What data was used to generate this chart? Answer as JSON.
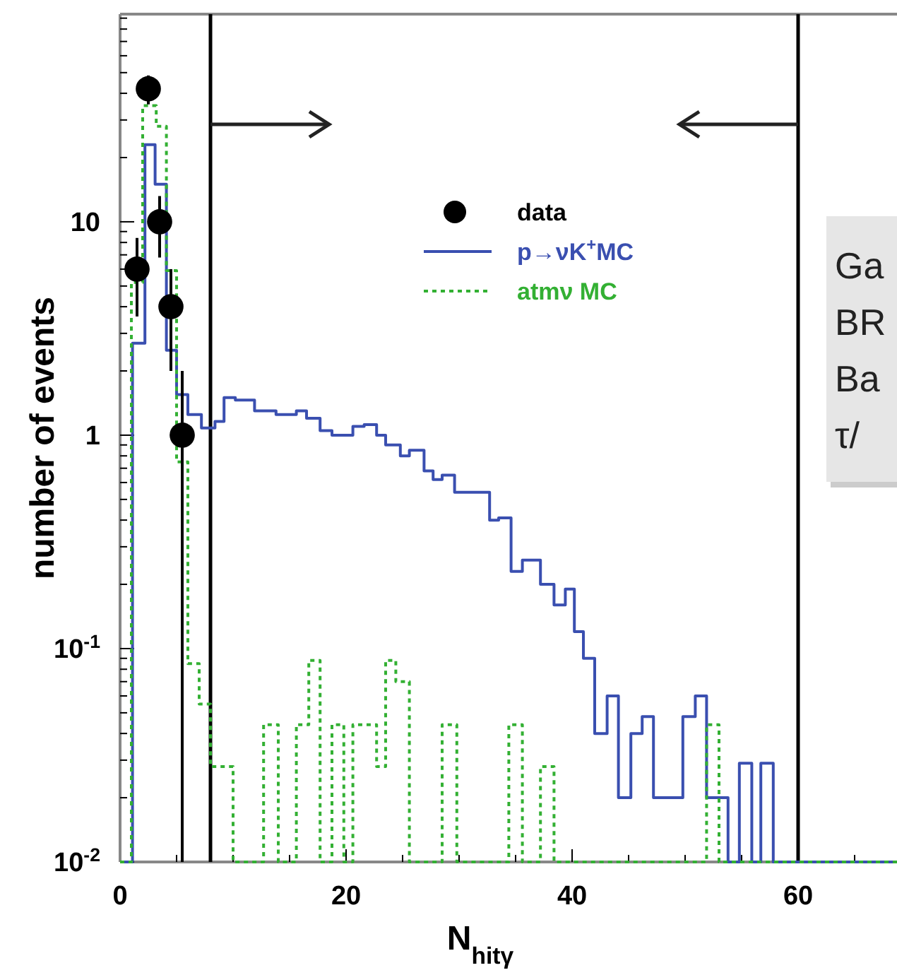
{
  "chart_data": {
    "type": "step",
    "xlabel": "N$_{hitγ}$",
    "ylabel": "number of events",
    "log": "y",
    "legend": "top",
    "grid": false,
    "xlim": [
      0,
      68.75
    ],
    "xticks": [
      0,
      {
        "value": 5,
        "label": null
      },
      {
        "value": 10,
        "label": null
      },
      {
        "value": 15,
        "label": null
      },
      20,
      {
        "value": 25,
        "label": null
      },
      {
        "value": 30,
        "label": null
      },
      {
        "value": 35,
        "label": null
      },
      40,
      {
        "value": 45,
        "label": null
      },
      {
        "value": 50,
        "label": null
      },
      {
        "value": 55,
        "label": null
      },
      60,
      {
        "value": 65,
        "label": null
      }
    ],
    "ylim": [
      0.01,
      94
    ],
    "yticks": [
      {
        "value": 0.01,
        "label": "10$^{-2}$"
      },
      {
        "value": 0.02,
        "label": null
      },
      {
        "value": 0.03,
        "label": null
      },
      {
        "value": 0.04,
        "label": null
      },
      {
        "value": 0.05,
        "label": null
      },
      {
        "value": 0.06,
        "label": null
      },
      {
        "value": 0.07,
        "label": null
      },
      {
        "value": 0.08,
        "label": null
      },
      {
        "value": 0.09,
        "label": null
      },
      {
        "value": 0.1,
        "label": "10$^{-1}$"
      },
      {
        "value": 0.2,
        "label": null
      },
      {
        "value": 0.3,
        "label": null
      },
      {
        "value": 0.4,
        "label": null
      },
      {
        "value": 0.5,
        "label": null
      },
      {
        "value": 0.6,
        "label": null
      },
      {
        "value": 0.7,
        "label": null
      },
      {
        "value": 0.8,
        "label": null
      },
      {
        "value": 0.9,
        "label": null
      },
      1,
      {
        "value": 2,
        "label": null
      },
      {
        "value": 3,
        "label": null
      },
      {
        "value": 4,
        "label": null
      },
      {
        "value": 5,
        "label": null
      },
      {
        "value": 6,
        "label": null
      },
      {
        "value": 7,
        "label": null
      },
      {
        "value": 8,
        "label": null
      },
      {
        "value": 9,
        "label": null
      },
      10,
      {
        "value": 20,
        "label": null
      },
      {
        "value": 30,
        "label": null
      },
      {
        "value": 40,
        "label": null
      },
      {
        "value": 50,
        "label": null
      },
      {
        "value": 60,
        "label": null
      },
      {
        "value": 70,
        "label": null
      },
      {
        "value": 80,
        "label": null
      },
      {
        "value": 90,
        "label": null
      }
    ],
    "series": [
      {
        "name": "data",
        "type": "scatter",
        "marker": "circle",
        "color": "#000000",
        "x": [
          1.5,
          2.5,
          3.5,
          4.5,
          5.5
        ],
        "values": [
          6,
          42,
          10,
          4,
          1
        ],
        "errors": [
          2.4,
          6.5,
          3.2,
          2,
          [
            0.99,
            1
          ]
        ]
      },
      {
        "name": "p→νK$^{+}$MC",
        "type": "step",
        "line_style": "solid",
        "color": "#3a4fb0",
        "x": [
          0,
          1.1,
          2.2,
          3.1,
          4.1,
          5.0,
          6.0,
          7.2,
          8.4,
          9.2,
          10.2,
          11.9,
          13.8,
          15.6,
          16.5,
          17.7,
          18.75,
          20.6,
          21.6,
          22.7,
          23.5,
          24.8,
          25.6,
          26.9,
          27.7,
          28.5,
          29.6,
          30.6,
          31.5,
          32.7,
          33.5,
          34.6,
          35.6,
          37.2,
          38.4,
          39.4,
          40.2,
          41,
          42,
          43.1,
          44.1,
          45.2,
          46.2,
          47.2,
          49.8,
          50.9,
          51.9,
          53.8,
          54.8,
          55.9,
          56.7,
          57.8,
          68.75
        ],
        "values": [
          0.01,
          2.7,
          23,
          15,
          2.5,
          1.55,
          1.25,
          1.08,
          1.16,
          1.5,
          1.46,
          1.3,
          1.25,
          1.3,
          1.2,
          1.05,
          1.0,
          1.1,
          1.12,
          1.0,
          0.9,
          0.8,
          0.85,
          0.68,
          0.62,
          0.65,
          0.54,
          0.54,
          0.54,
          0.4,
          0.41,
          0.23,
          0.26,
          0.2,
          0.16,
          0.19,
          0.12,
          0.09,
          0.04,
          0.06,
          0.02,
          0.04,
          0.048,
          0.02,
          0.048,
          0.06,
          0.02,
          0.01,
          0.029,
          0.01,
          0.029,
          0.01,
          0.01
        ]
      },
      {
        "name": "atmν MC",
        "type": "step",
        "line_style": "dotted",
        "color": "#33b033",
        "x": [
          0,
          1.0,
          2.0,
          3.2,
          4.1,
          5.0,
          6.0,
          7.0,
          8.0,
          10.0,
          12.7,
          14.0,
          15.6,
          16.7,
          17.7,
          18.75,
          19.8,
          20.6,
          22.7,
          23.5,
          24.4,
          25.6,
          28.5,
          29.8,
          34.4,
          35.6,
          37.2,
          38.4,
          51.9,
          53,
          68.75
        ],
        "values": [
          0.01,
          5.2,
          35,
          28,
          5.9,
          0.75,
          0.085,
          0.055,
          0.028,
          0.01,
          0.044,
          0.01,
          0.044,
          0.088,
          0.01,
          0.044,
          0.01,
          0.044,
          0.028,
          0.088,
          0.07,
          0.01,
          0.044,
          0.01,
          0.044,
          0.01,
          0.028,
          0.01,
          0.044,
          0.01,
          0.01
        ]
      }
    ],
    "ref_lines": [
      {
        "axis": "x",
        "value": 8,
        "color": "#000000"
      },
      {
        "axis": "x",
        "value": 60,
        "color": "#000000"
      }
    ],
    "annotations": [
      "Ga",
      "BR",
      "Ba",
      "τ/"
    ]
  }
}
